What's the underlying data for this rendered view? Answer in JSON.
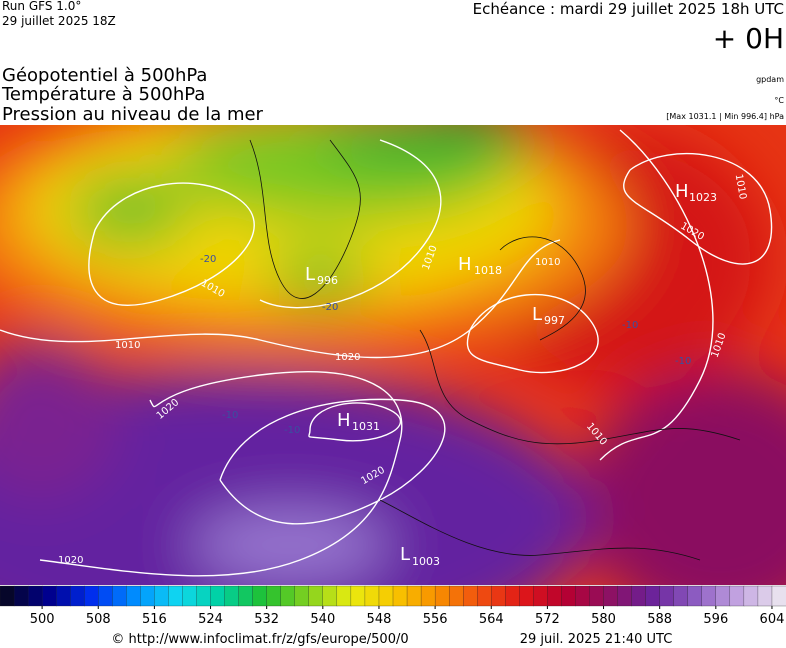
{
  "header": {
    "run": "Run GFS 1.0°",
    "run_date": "29 juillet 2025 18Z",
    "echeance": "Echéance : mardi 29 juillet 2025 18h UTC",
    "offset": "+ 0H",
    "titles": [
      "Géopotentiel à 500hPa",
      "Température à 500hPa",
      "Pression au niveau de la mer"
    ],
    "unit_geopotential": "gpdam",
    "unit_temperature": "°C",
    "pressure_range": "[Max 1031.1 | Min 996.4] hPa"
  },
  "map": {
    "centers": [
      {
        "letter": "H",
        "value": "1023"
      },
      {
        "letter": "L",
        "value": "996"
      },
      {
        "letter": "H",
        "value": "1018"
      },
      {
        "letter": "L",
        "value": "997"
      },
      {
        "letter": "H",
        "value": "1031"
      },
      {
        "letter": "L",
        "value": "1003"
      }
    ],
    "isobar_labels": [
      "1020",
      "1020",
      "1020",
      "1020",
      "1010",
      "1010",
      "1010",
      "1020",
      "1010",
      "1010",
      "1010",
      "1010"
    ],
    "temperature_labels": [
      "-20",
      "-20",
      "-10",
      "-10",
      "-10",
      "-10"
    ]
  },
  "colorbar": {
    "range": [
      494,
      606
    ],
    "step": 2,
    "ticks": [
      500,
      508,
      516,
      524,
      532,
      540,
      548,
      556,
      564,
      572,
      580,
      588,
      596,
      604
    ],
    "palette": [
      "#06062a",
      "#000090",
      "#0030f0",
      "#0090ff",
      "#10d8f0",
      "#00d0a0",
      "#20c030",
      "#80d020",
      "#e8ec10",
      "#f8c800",
      "#f89000",
      "#f05010",
      "#e01818",
      "#b80030",
      "#901060",
      "#6a2098",
      "#8a58c0",
      "#c0a0e0",
      "#e8e0ee"
    ]
  },
  "footer": {
    "url": "© http://www.infoclimat.fr/z/gfs/europe/500/0",
    "timestamp": "29 juil. 2025 21:40 UTC"
  }
}
